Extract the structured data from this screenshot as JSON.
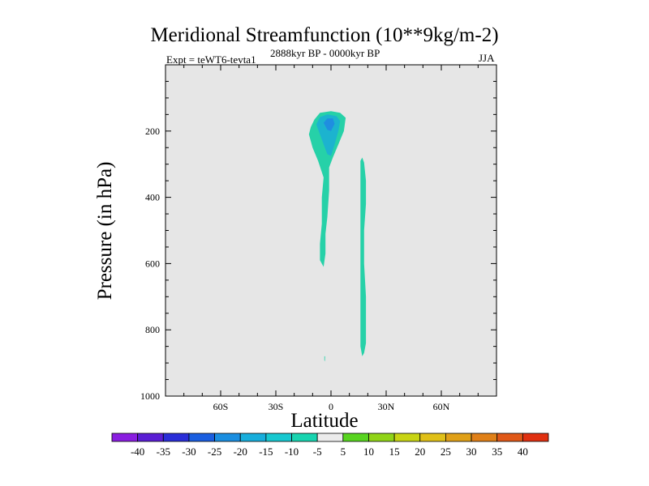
{
  "title": "Meridional Streamfunction (10**9kg/m-2)",
  "subtitle_left": "Expt = teWT6-tevta1",
  "subtitle_center": "2888kyr BP - 0000kyr BP",
  "subtitle_right": "JJA",
  "chart_data": {
    "type": "contour",
    "title": "Meridional Streamfunction (10**9kg/m-2)",
    "xlabel": "Latitude",
    "ylabel": "Pressure (in hPa)",
    "xlim": [
      -90,
      90
    ],
    "ylim": [
      1000,
      0
    ],
    "x_ticks": [
      {
        "value": -60,
        "label": "60S"
      },
      {
        "value": -30,
        "label": "30S"
      },
      {
        "value": 0,
        "label": "0"
      },
      {
        "value": 30,
        "label": "30N"
      },
      {
        "value": 60,
        "label": "60N"
      }
    ],
    "y_ticks": [
      {
        "value": 200,
        "label": "200"
      },
      {
        "value": 400,
        "label": "400"
      },
      {
        "value": 600,
        "label": "600"
      },
      {
        "value": 800,
        "label": "800"
      },
      {
        "value": 1000,
        "label": "1000"
      }
    ],
    "background_color": "#e6e6e6",
    "regions": [
      {
        "name": "southern-cell-weak",
        "level": "-10 to -5",
        "color": "#26d1a8",
        "points": [
          [
            -11,
            188
          ],
          [
            -9,
            165
          ],
          [
            -6,
            145
          ],
          [
            0,
            140
          ],
          [
            5,
            145
          ],
          [
            8,
            160
          ],
          [
            7,
            200
          ],
          [
            4,
            240
          ],
          [
            1,
            280
          ],
          [
            -1,
            310
          ],
          [
            -1,
            380
          ],
          [
            -2,
            460
          ],
          [
            -3,
            510
          ],
          [
            -3,
            570
          ],
          [
            -4,
            610
          ],
          [
            -6,
            590
          ],
          [
            -6,
            540
          ],
          [
            -5,
            480
          ],
          [
            -5,
            400
          ],
          [
            -4,
            340
          ],
          [
            -7,
            290
          ],
          [
            -10,
            250
          ],
          [
            -12,
            210
          ]
        ]
      },
      {
        "name": "southern-cell-moderate",
        "level": "-15 to -10",
        "color": "#1cb3cf",
        "points": [
          [
            -8,
            180
          ],
          [
            -6,
            158
          ],
          [
            -2,
            150
          ],
          [
            3,
            155
          ],
          [
            5,
            170
          ],
          [
            4,
            200
          ],
          [
            2,
            240
          ],
          [
            0,
            275
          ],
          [
            -2,
            270
          ],
          [
            -4,
            240
          ],
          [
            -6,
            210
          ]
        ]
      },
      {
        "name": "southern-cell-core",
        "level": "-20 to -15",
        "color": "#1f8ee0",
        "points": [
          [
            -4,
            175
          ],
          [
            -2,
            162
          ],
          [
            1,
            162
          ],
          [
            2,
            178
          ],
          [
            0,
            200
          ],
          [
            -2,
            196
          ]
        ]
      },
      {
        "name": "northern-thin-cell",
        "level": "-10 to -5",
        "color": "#26d1a8",
        "points": [
          [
            16,
            290
          ],
          [
            17,
            280
          ],
          [
            18,
            295
          ],
          [
            19,
            350
          ],
          [
            19,
            420
          ],
          [
            18,
            500
          ],
          [
            18,
            600
          ],
          [
            19,
            700
          ],
          [
            19,
            800
          ],
          [
            19,
            840
          ],
          [
            18,
            870
          ],
          [
            17,
            880
          ],
          [
            16,
            850
          ],
          [
            16,
            760
          ],
          [
            16,
            650
          ],
          [
            16,
            560
          ],
          [
            16,
            480
          ],
          [
            16,
            400
          ],
          [
            16,
            340
          ]
        ]
      },
      {
        "name": "surface-sliver",
        "level": "-10 to -5",
        "color": "#26d1a8",
        "points": [
          [
            -3.6,
            880
          ],
          [
            -3.2,
            880
          ],
          [
            -3.3,
            895
          ],
          [
            -3.6,
            892
          ]
        ]
      }
    ],
    "colorbar": {
      "labels": [
        "-40",
        "-35",
        "-30",
        "-25",
        "-20",
        "-15",
        "-10",
        "-5",
        "5",
        "10",
        "15",
        "20",
        "25",
        "30",
        "35",
        "40"
      ],
      "colors": [
        "#8a1ee0",
        "#5a1ed4",
        "#2a2ed8",
        "#1a5ee0",
        "#1a8ee0",
        "#18aedc",
        "#18c8d0",
        "#18d4b0",
        "#ececec",
        "#58d420",
        "#90d418",
        "#c8d414",
        "#e0c018",
        "#e0a018",
        "#e08018",
        "#e05818",
        "#e03010"
      ]
    }
  }
}
